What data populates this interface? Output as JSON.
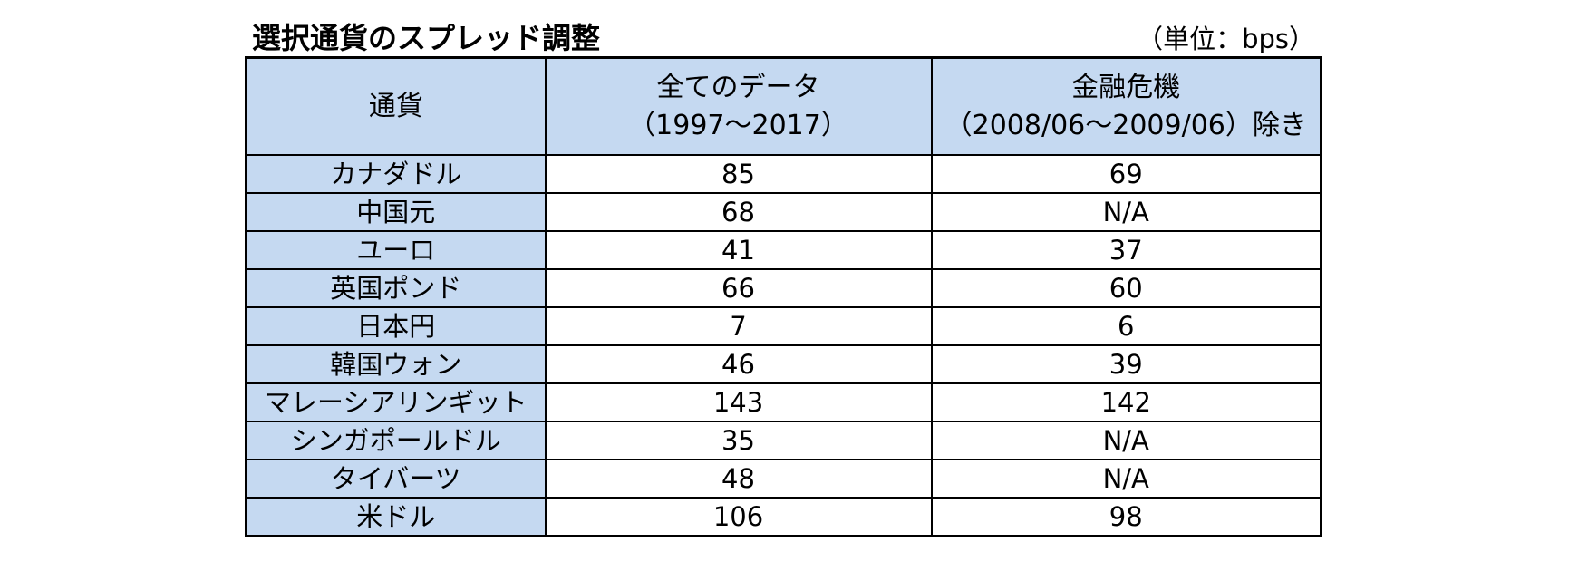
{
  "title": "選択通貨のスプレッド調整",
  "unit": "（単位：bps）",
  "header": {
    "currency": "通貨",
    "all_data_line1": "全てのデータ",
    "all_data_line2": "（1997～2017）",
    "excl_line1": "金融危機",
    "excl_line2": "（2008/06～2009/06）除き"
  },
  "rows": [
    {
      "currency": "カナダドル",
      "all": "85",
      "excl": "69"
    },
    {
      "currency": "中国元",
      "all": "68",
      "excl": "N/A"
    },
    {
      "currency": "ユーロ",
      "all": "41",
      "excl": "37"
    },
    {
      "currency": "英国ポンド",
      "all": "66",
      "excl": "60"
    },
    {
      "currency": "日本円",
      "all": "7",
      "excl": "6"
    },
    {
      "currency": "韓国ウォン",
      "all": "46",
      "excl": "39"
    },
    {
      "currency": "マレーシアリンギット",
      "all": "143",
      "excl": "142"
    },
    {
      "currency": "シンガポールドル",
      "all": "35",
      "excl": "N/A"
    },
    {
      "currency": "タイバーツ",
      "all": "48",
      "excl": "N/A"
    },
    {
      "currency": "米ドル",
      "all": "106",
      "excl": "98"
    }
  ]
}
